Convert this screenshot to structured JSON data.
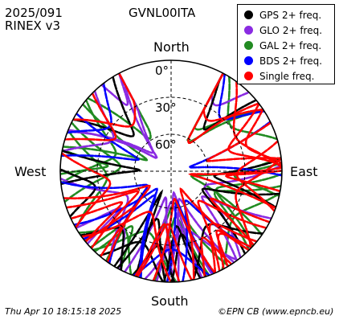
{
  "header": {
    "date": "2025/091",
    "format": "RINEX v3",
    "station": "GVNL00ITA"
  },
  "footer": {
    "timestamp": "Thu Apr 10 18:15:18 2025",
    "credit": "©EPN CB (www.epncb.eu)"
  },
  "colors": {
    "gps": "#000000",
    "glo": "#8a2be2",
    "gal": "#228b22",
    "bds": "#0000ff",
    "single": "#ff0000"
  },
  "chart_data": {
    "type": "skyplot",
    "directions": {
      "north": "North",
      "south": "South",
      "west": "West",
      "east": "East"
    },
    "elevation_rings": [
      {
        "elevation": 0,
        "label": "0°"
      },
      {
        "elevation": 30,
        "label": "30°"
      },
      {
        "elevation": 60,
        "label": "60°"
      }
    ],
    "legend": [
      {
        "key": "gps",
        "label": "GPS 2+ freq."
      },
      {
        "key": "glo",
        "label": "GLO 2+ freq."
      },
      {
        "key": "gal",
        "label": "GAL 2+ freq."
      },
      {
        "key": "bds",
        "label": "BDS 2+ freq."
      },
      {
        "key": "single",
        "label": "Single freq."
      }
    ],
    "visible_azimuth_range_deg": [
      30,
      330
    ],
    "north_gap": "no tracks between about 330° and 30° azimuth at low elevation"
  }
}
